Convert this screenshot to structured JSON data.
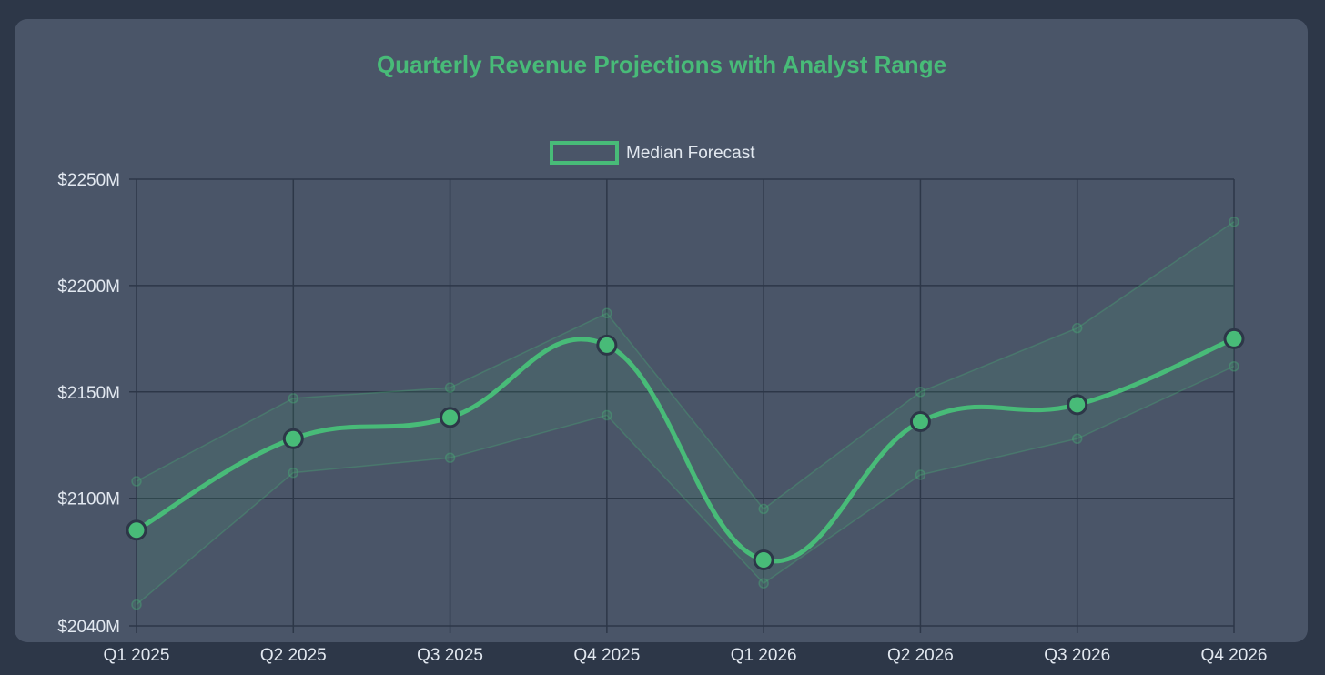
{
  "chart_data": {
    "type": "line",
    "title": "Quarterly Revenue Projections with Analyst Range",
    "categories": [
      "Q1 2025",
      "Q2 2025",
      "Q3 2025",
      "Q4 2025",
      "Q1 2026",
      "Q2 2026",
      "Q3 2026",
      "Q4 2026"
    ],
    "series": [
      {
        "name": "Median Forecast",
        "values": [
          2085,
          2128,
          2138,
          2172,
          2071,
          2136,
          2144,
          2175
        ]
      }
    ],
    "range": {
      "high": [
        2108,
        2147,
        2152,
        2187,
        2095,
        2150,
        2180,
        2230
      ],
      "low": [
        2050,
        2112,
        2119,
        2139,
        2060,
        2111,
        2128,
        2162
      ]
    },
    "yticks": [
      "$2250M",
      "$2200M",
      "$2150M",
      "$2100M",
      "$2040M"
    ],
    "ytick_values": [
      2250,
      2200,
      2150,
      2100,
      2040
    ],
    "ylim": [
      2040,
      2250
    ],
    "xlabel": "",
    "ylabel": "",
    "grid": true,
    "legend_position": "top-center",
    "colors": {
      "page_background": "#2d3748",
      "card_background": "#4a5568",
      "accent": "#48bb78",
      "grid": "#2d3748",
      "text": "#e2e8f0"
    }
  }
}
